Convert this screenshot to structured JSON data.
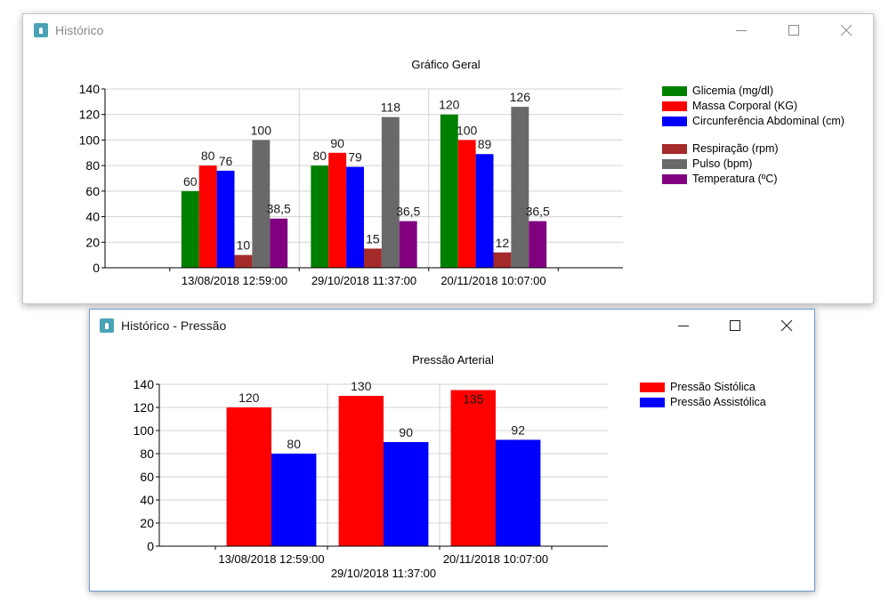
{
  "windows": [
    {
      "title": "Histórico",
      "controls": [
        "minimize-icon",
        "maximize-icon",
        "close-icon"
      ],
      "colors": {
        "icon": "#4aa3b5",
        "title_text": "#8a8a8a"
      }
    },
    {
      "title": "Histórico - Pressão",
      "controls": [
        "minimize-icon",
        "maximize-icon",
        "close-icon"
      ],
      "colors": {
        "icon": "#4aa3b5",
        "title_text": "#1a1a1a",
        "border": "#6c9bd1"
      }
    }
  ],
  "chart_data": [
    {
      "type": "bar",
      "title": "Gráfico Geral",
      "categories": [
        "13/08/2018 12:59:00",
        "29/10/2018 11:37:00",
        "20/11/2018 10:07:00"
      ],
      "series": [
        {
          "name": "Glicemia (mg/dl)",
          "color": "#008000",
          "values": [
            60,
            80,
            120
          ],
          "labels": [
            "60",
            "80",
            "120"
          ]
        },
        {
          "name": "Massa Corporal (KG)",
          "color": "#ff0000",
          "values": [
            80,
            90,
            100
          ],
          "labels": [
            "80",
            "90",
            "100"
          ]
        },
        {
          "name": "Circunferência Abdominal (cm)",
          "color": "#0000ff",
          "values": [
            76,
            79,
            89
          ],
          "labels": [
            "76",
            "79",
            "89"
          ]
        },
        {
          "name": "Respiração (rpm)",
          "color": "#a52a2a",
          "values": [
            10,
            15,
            12
          ],
          "labels": [
            "10",
            "15",
            "12"
          ]
        },
        {
          "name": "Pulso (bpm)",
          "color": "#696969",
          "values": [
            100,
            118,
            126
          ],
          "labels": [
            "100",
            "118",
            "126"
          ]
        },
        {
          "name": "Temperatura (ºC)",
          "color": "#800080",
          "values": [
            38.5,
            36.5,
            36.5
          ],
          "labels": [
            "38,5",
            "36,5",
            "36,5"
          ]
        }
      ],
      "y_ticks": [
        "0",
        "20",
        "40",
        "60",
        "80",
        "100",
        "120",
        "140"
      ],
      "ylim": [
        0,
        140
      ],
      "grid": true,
      "legend": "right"
    },
    {
      "type": "bar",
      "title": "Pressão Arterial",
      "categories": [
        "13/08/2018 12:59:00",
        "29/10/2018 11:37:00",
        "20/11/2018 10:07:00"
      ],
      "series": [
        {
          "name": "Pressão Sistólica",
          "color": "#ff0000",
          "values": [
            120,
            130,
            135
          ],
          "labels": [
            "120",
            "130",
            "135"
          ]
        },
        {
          "name": "Pressão Assistólica",
          "color": "#0000ff",
          "values": [
            80,
            90,
            92
          ],
          "labels": [
            "80",
            "90",
            "92"
          ]
        }
      ],
      "y_ticks": [
        "0",
        "20",
        "40",
        "60",
        "80",
        "100",
        "120",
        "140"
      ],
      "ylim": [
        0,
        140
      ],
      "grid": true,
      "legend": "right"
    }
  ]
}
